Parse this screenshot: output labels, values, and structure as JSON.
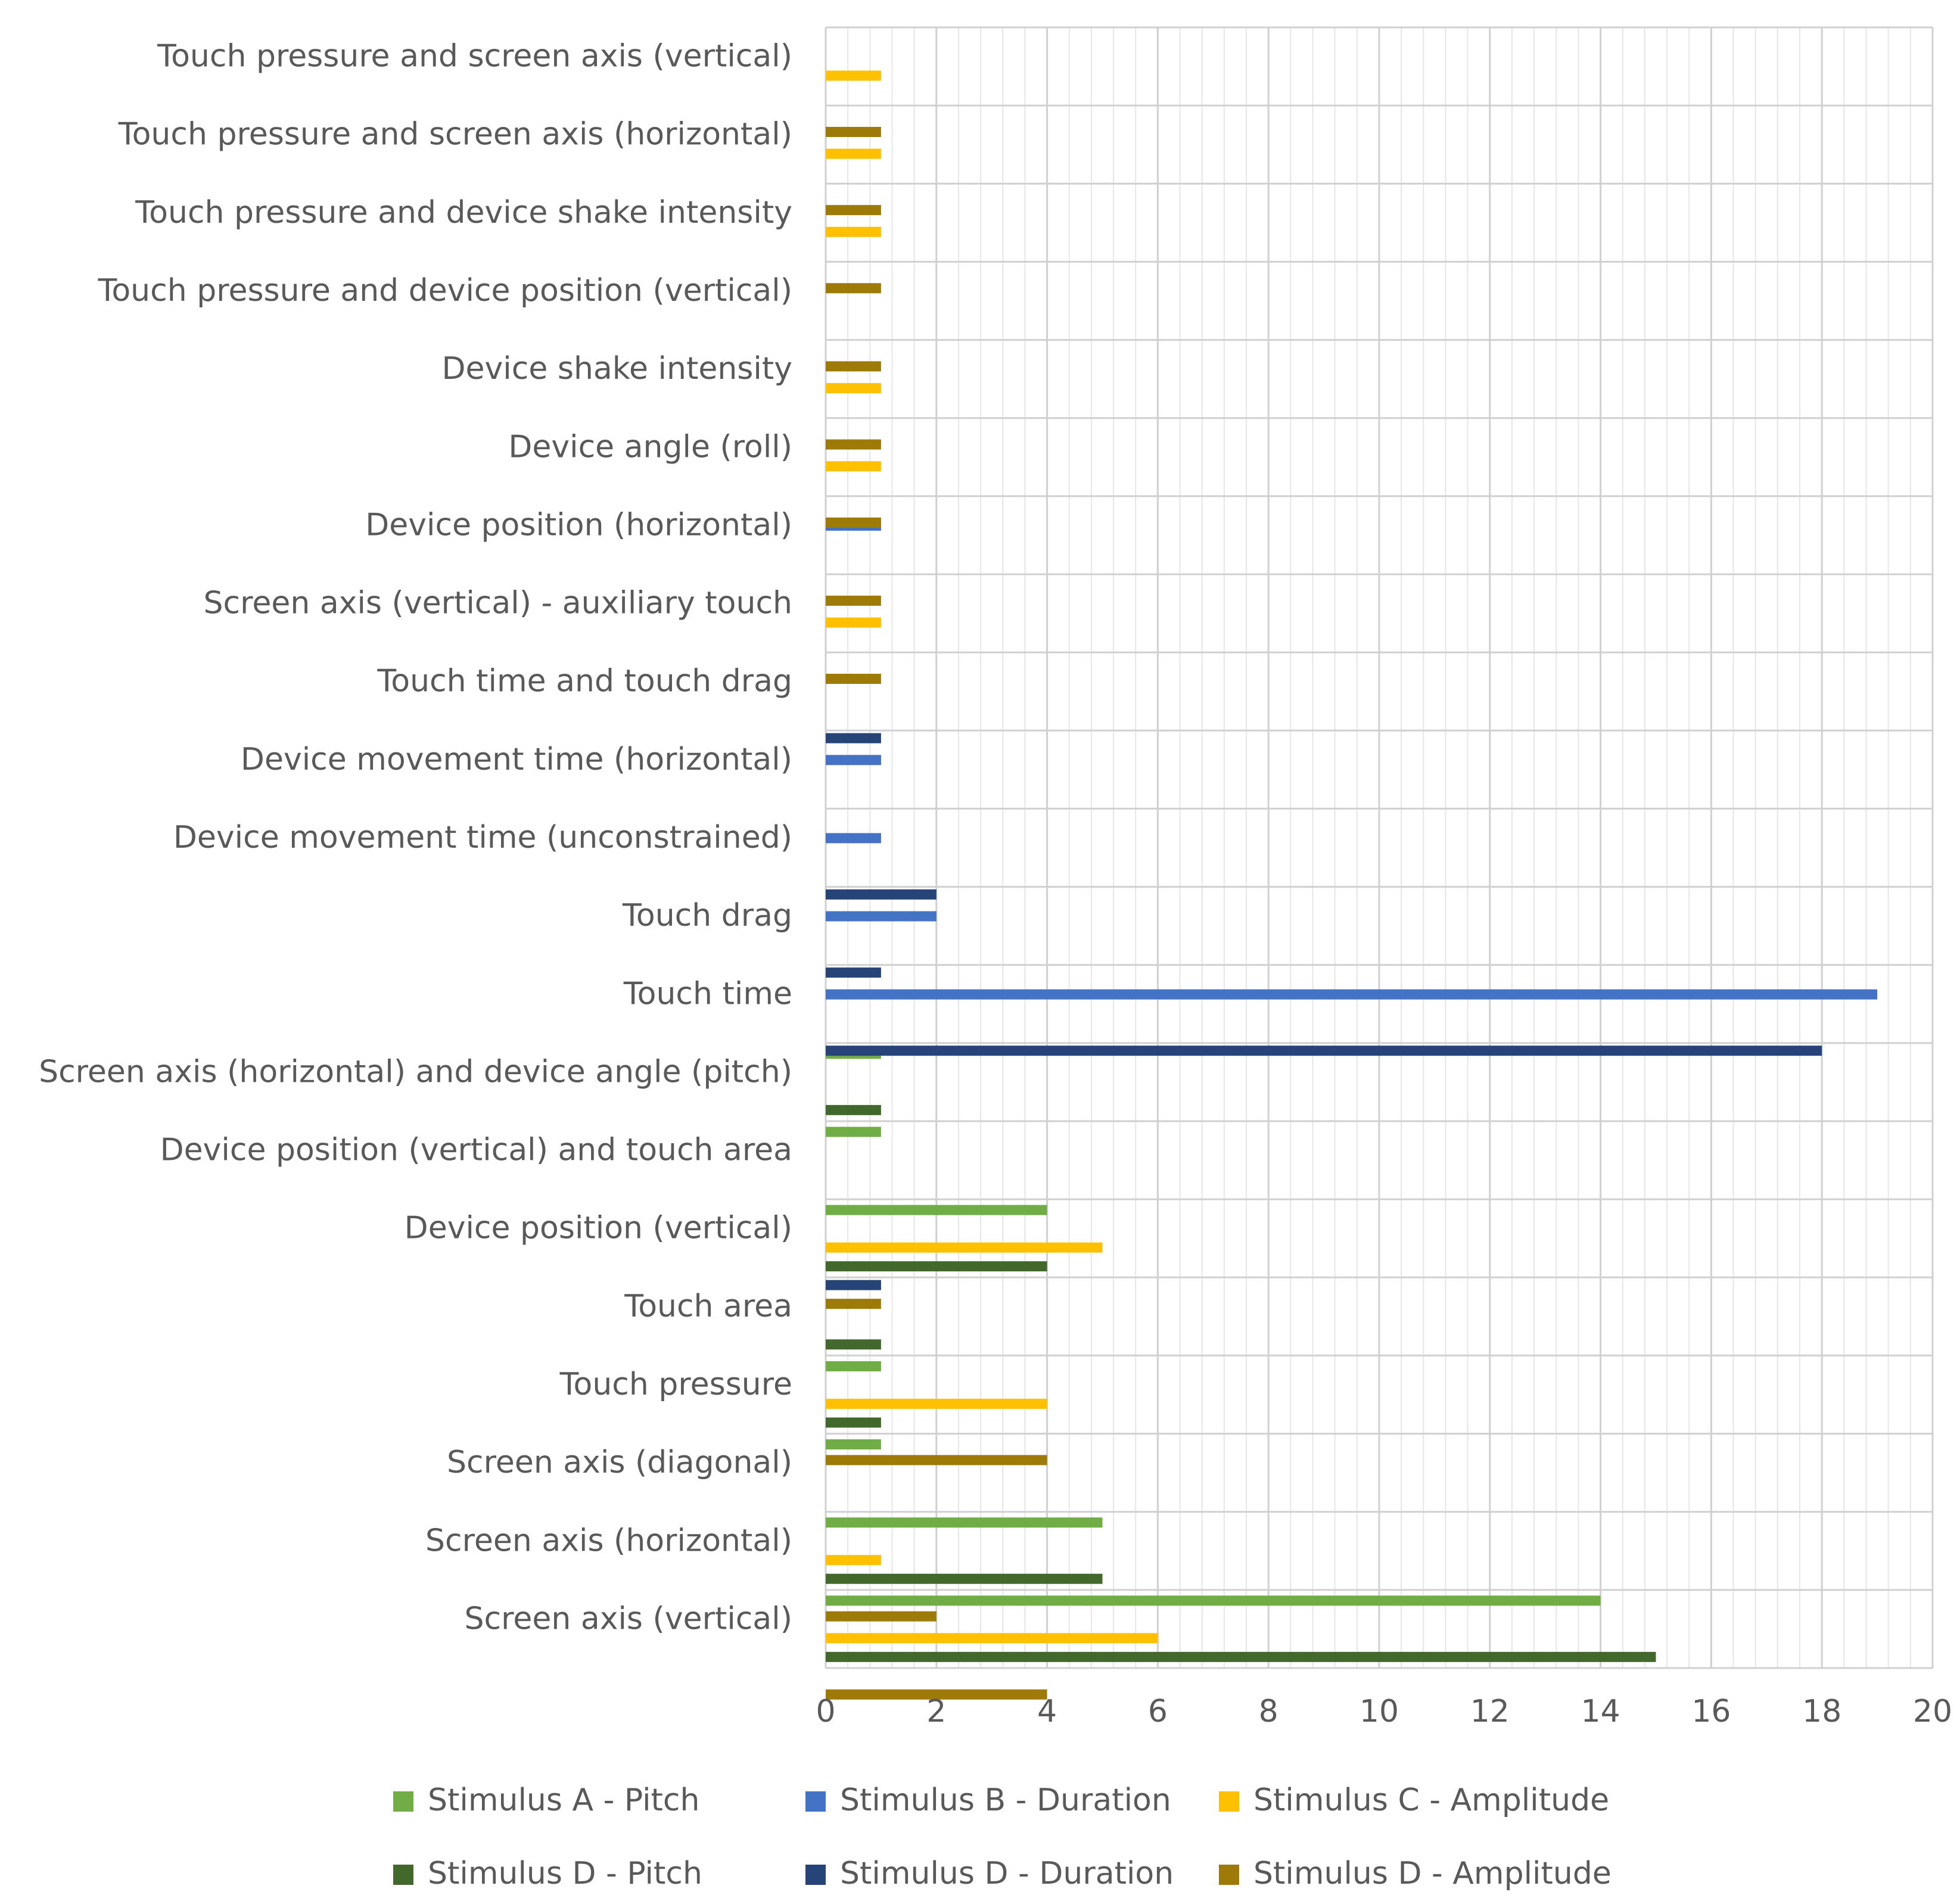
{
  "chart_data": {
    "type": "bar",
    "orientation": "horizontal",
    "title": "",
    "xlabel": "",
    "ylabel": "",
    "xlim": [
      0,
      20
    ],
    "x_ticks": [
      0,
      2,
      4,
      6,
      8,
      10,
      12,
      14,
      16,
      18,
      20
    ],
    "grid": true,
    "legend_position": "bottom",
    "categories": [
      "Touch pressure and screen axis (vertical)",
      "Touch pressure and screen axis (horizontal)",
      "Touch pressure and device shake intensity",
      "Touch pressure and device position (vertical)",
      "Device shake intensity",
      "Device angle (roll)",
      "Device position (horizontal)",
      "Screen axis (vertical) - auxiliary touch",
      "Touch time and touch drag",
      "Device movement time (horizontal)",
      "Device movement time (unconstrained)",
      "Touch drag",
      "Touch time",
      "Screen axis (horizontal)   and device angle (pitch)",
      "Device position (vertical) and   touch area",
      "Device position (vertical)",
      "Touch area",
      "Touch   pressure",
      "Screen axis (diagonal)",
      "Screen axis (horizontal)",
      "Screen axis (vertical)"
    ],
    "series": [
      {
        "name": "Stimulus A -  Pitch",
        "color": "#70ad47",
        "values": [
          0,
          0,
          0,
          0,
          0,
          0,
          0,
          0,
          0,
          0,
          0,
          0,
          0,
          1,
          1,
          4,
          0,
          1,
          1,
          5,
          14
        ]
      },
      {
        "name": "Stimulus B -  Duration",
        "color": "#4472c4",
        "values": [
          0,
          0,
          0,
          0,
          0,
          0,
          1,
          0,
          0,
          1,
          1,
          2,
          19,
          0,
          0,
          0,
          0,
          0,
          0,
          0,
          0
        ]
      },
      {
        "name": "Stimulus C -  Amplitude",
        "color": "#ffc000",
        "values": [
          1,
          1,
          1,
          0,
          1,
          1,
          0,
          1,
          0,
          0,
          0,
          0,
          0,
          0,
          0,
          5,
          0,
          4,
          0,
          1,
          6
        ]
      },
      {
        "name": "Stimulus D -  Pitch",
        "color": "#43682b",
        "values": [
          0,
          0,
          0,
          0,
          0,
          0,
          0,
          0,
          0,
          0,
          0,
          0,
          0,
          1,
          0,
          4,
          1,
          1,
          0,
          5,
          15
        ]
      },
      {
        "name": "Stimulus D -  Duration",
        "color": "#264478",
        "values": [
          0,
          0,
          0,
          0,
          0,
          0,
          0,
          0,
          1,
          0,
          2,
          1,
          18,
          0,
          0,
          1,
          0,
          0,
          0,
          0,
          0
        ]
      },
      {
        "name": "Stimulus D -  Amplitude",
        "color": "#9e7a08",
        "values": [
          1,
          1,
          1,
          1,
          1,
          1,
          1,
          1,
          0,
          0,
          0,
          0,
          0,
          0,
          0,
          1,
          0,
          4,
          0,
          2,
          4
        ]
      }
    ]
  }
}
